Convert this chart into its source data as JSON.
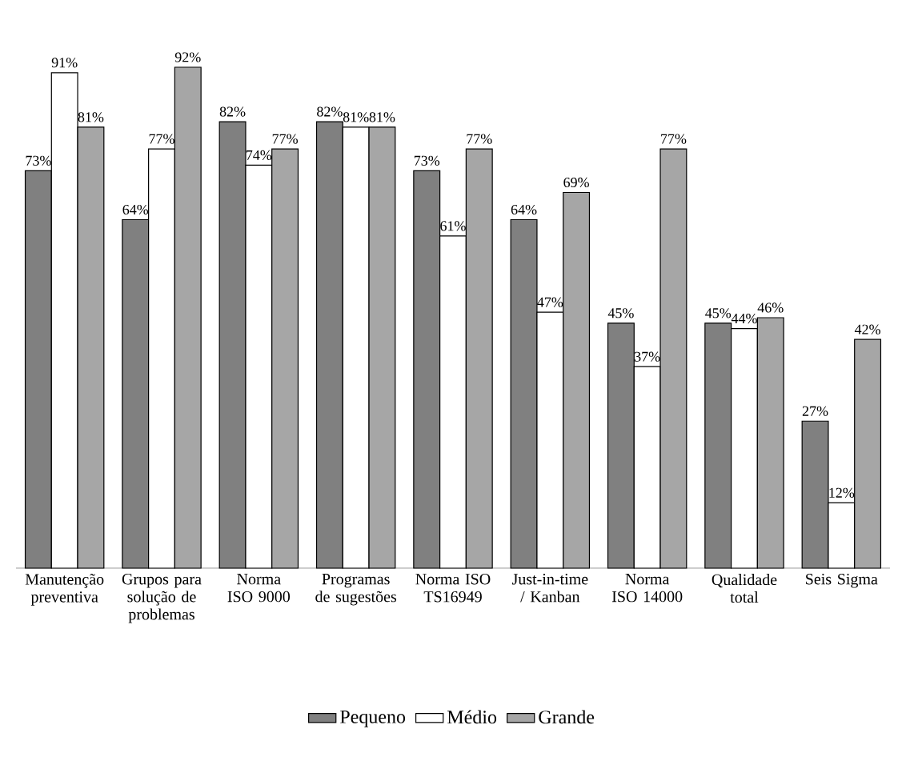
{
  "chart_data": {
    "type": "bar",
    "categories": [
      "Manutenção preventiva",
      "Grupos para solução de problemas",
      "Norma ISO 9000",
      "Programas de sugestões",
      "Norma ISO TS16949",
      "Just-in-time / Kanban",
      "Norma ISO 14000",
      "Qualidade total",
      "Seis Sigma"
    ],
    "series": [
      {
        "name": "Pequeno",
        "color": "#808080",
        "values": [
          73,
          64,
          82,
          82,
          73,
          64,
          45,
          45,
          27
        ],
        "value_labels": [
          "73%",
          "64%",
          "82%",
          "82%",
          "73%",
          "64%",
          "45%",
          "45%",
          "27%"
        ]
      },
      {
        "name": "Médio",
        "color": "#ffffff",
        "values": [
          91,
          77,
          74,
          81,
          61,
          47,
          37,
          44,
          12
        ],
        "value_labels": [
          "91%",
          "77%",
          "74%",
          "81%",
          "61%",
          "47%",
          "37%",
          "44%",
          "12%"
        ]
      },
      {
        "name": "Grande",
        "color": "#a6a6a6",
        "values": [
          81,
          92,
          77,
          81,
          77,
          69,
          77,
          46,
          42
        ],
        "value_labels": [
          "81%",
          "92%",
          "77%",
          "81%",
          "77%",
          "69%",
          "77%",
          "46%",
          "42%"
        ]
      }
    ],
    "tick_labels": "x",
    "legend": "bottom",
    "grid": false
  }
}
